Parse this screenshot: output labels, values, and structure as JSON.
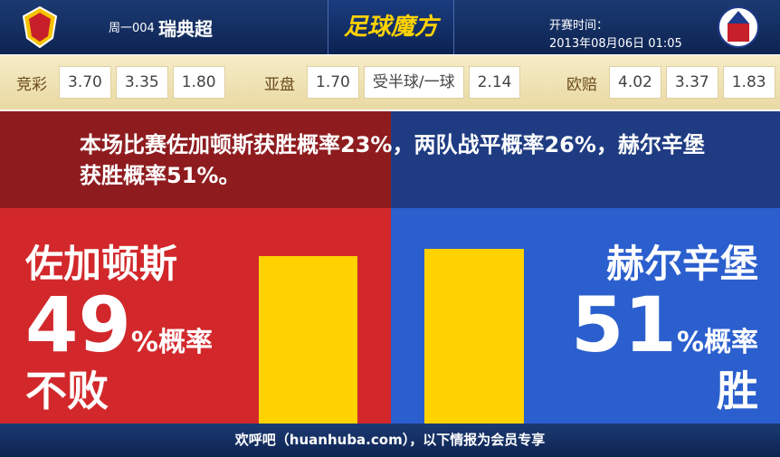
{
  "header": {
    "match_no": "周一004",
    "league": "瑞典超",
    "brand": "足球魔方",
    "time_label": "开赛时间：",
    "time": "2013年08月06日 01:05"
  },
  "odds": [
    {
      "label": "竞彩",
      "values": [
        "3.70",
        "3.35",
        "1.80"
      ]
    },
    {
      "label": "亚盘",
      "values": [
        "1.70",
        "受半球/一球",
        "2.14"
      ]
    },
    {
      "label": "欧赔",
      "values": [
        "4.02",
        "3.37",
        "1.83"
      ]
    }
  ],
  "summary": "本场比赛佐加顿斯获胜概率23%，两队战平概率26%，赫尔辛堡获胜概率51%。",
  "home": {
    "name": "佐加顿斯",
    "percent": 49,
    "percent_label": "%概率",
    "outcome": "不败"
  },
  "away": {
    "name": "赫尔辛堡",
    "percent": 51,
    "percent_label": "%概率",
    "outcome": "胜"
  },
  "footer": "欢呼吧（huanhuba.com），以下情报为会员专享"
}
